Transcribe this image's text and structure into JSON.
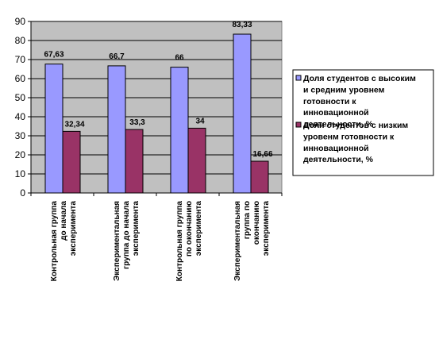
{
  "chart_data": {
    "type": "bar",
    "categories": [
      [
        "Контрольная группа",
        "до начала",
        "эксперимента"
      ],
      [
        "Экспериментальная",
        "группа до начала",
        "эксперимента"
      ],
      [
        "Контрольная группа",
        "по окончанию",
        "эксперимента"
      ],
      [
        "Экспериментальная",
        "группа по",
        "окончанию",
        "эксперимента"
      ]
    ],
    "series": [
      {
        "name": [
          "Доля студентов с высоким",
          "и средним уровнем",
          "готовности к",
          "инновационной",
          "деятельности, %"
        ],
        "values": [
          67.63,
          66.7,
          66,
          83.33
        ],
        "labels": [
          "67,63",
          "66,7",
          "66",
          "83,33"
        ],
        "color": "#9999ff"
      },
      {
        "name": [
          "Доля студентов с низким",
          "уровенм готовности к",
          "инновационной",
          "деятельности, %"
        ],
        "values": [
          32.34,
          33.3,
          34,
          16.66
        ],
        "labels": [
          "32,34",
          "33,3",
          "34",
          "16,66"
        ],
        "color": "#993366"
      }
    ],
    "yticks": [
      0,
      10,
      20,
      30,
      40,
      50,
      60,
      70,
      80,
      90
    ],
    "ylim": [
      0,
      90
    ],
    "grid": true,
    "plot_background": "#c0c0c0",
    "legend": "right",
    "title": "",
    "xlabel": "",
    "ylabel": ""
  }
}
